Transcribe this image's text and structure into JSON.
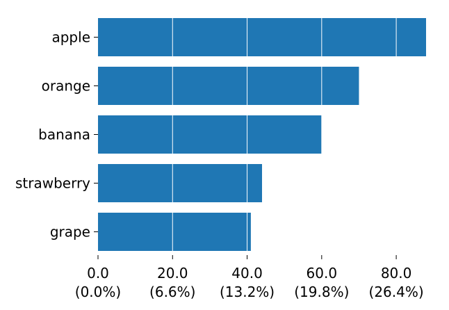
{
  "chart_data": {
    "type": "bar",
    "orientation": "horizontal",
    "categories": [
      "apple",
      "orange",
      "banana",
      "strawberry",
      "grape"
    ],
    "values": [
      88,
      70,
      60,
      44,
      41
    ],
    "xlim": [
      0,
      88
    ],
    "xticks": [
      {
        "value": 0,
        "label": "0.0",
        "sublabel": "(0.0%)"
      },
      {
        "value": 20,
        "label": "20.0",
        "sublabel": "(6.6%)"
      },
      {
        "value": 40,
        "label": "40.0",
        "sublabel": "(13.2%)"
      },
      {
        "value": 60,
        "label": "60.0",
        "sublabel": "(19.8%)"
      },
      {
        "value": 80,
        "label": "80.0",
        "sublabel": "(26.4%)"
      }
    ],
    "grid": "vertical, white, drawn over bars",
    "bar_color": "#1f77b4",
    "grid_color": "#ffffff"
  }
}
